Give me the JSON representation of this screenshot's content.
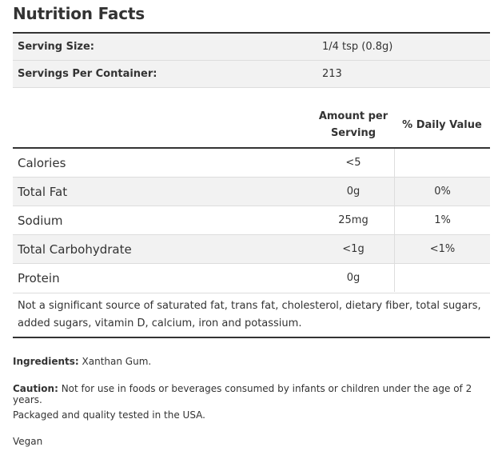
{
  "title": "Nutrition Facts",
  "serving": {
    "size_label": "Serving Size:",
    "size_value": "1/4 tsp (0.8g)",
    "per_container_label": "Servings Per Container:",
    "per_container_value": "213"
  },
  "table": {
    "col_amount_line1": "Amount per",
    "col_amount_line2": "Serving",
    "col_dv": "% Daily Value",
    "rows": [
      {
        "name": "Calories",
        "amount": "<5",
        "dv": ""
      },
      {
        "name": "Total Fat",
        "amount": "0g",
        "dv": "0%"
      },
      {
        "name": "Sodium",
        "amount": "25mg",
        "dv": "1%"
      },
      {
        "name": "Total Carbohydrate",
        "amount": "<1g",
        "dv": "<1%"
      },
      {
        "name": "Protein",
        "amount": "0g",
        "dv": ""
      }
    ]
  },
  "footnote": "Not a significant source of saturated fat, trans fat, cholesterol, dietary fiber, total sugars, added sugars, vitamin D, calcium, iron and potassium.",
  "ingredients": {
    "label": "Ingredients:",
    "text": " Xanthan Gum."
  },
  "caution": {
    "label": "Caution:",
    "text": " Not for use in foods or beverages consumed by infants or children under the age of 2 years."
  },
  "packaged": "Packaged and quality tested in the USA.",
  "vegan": "Vegan"
}
